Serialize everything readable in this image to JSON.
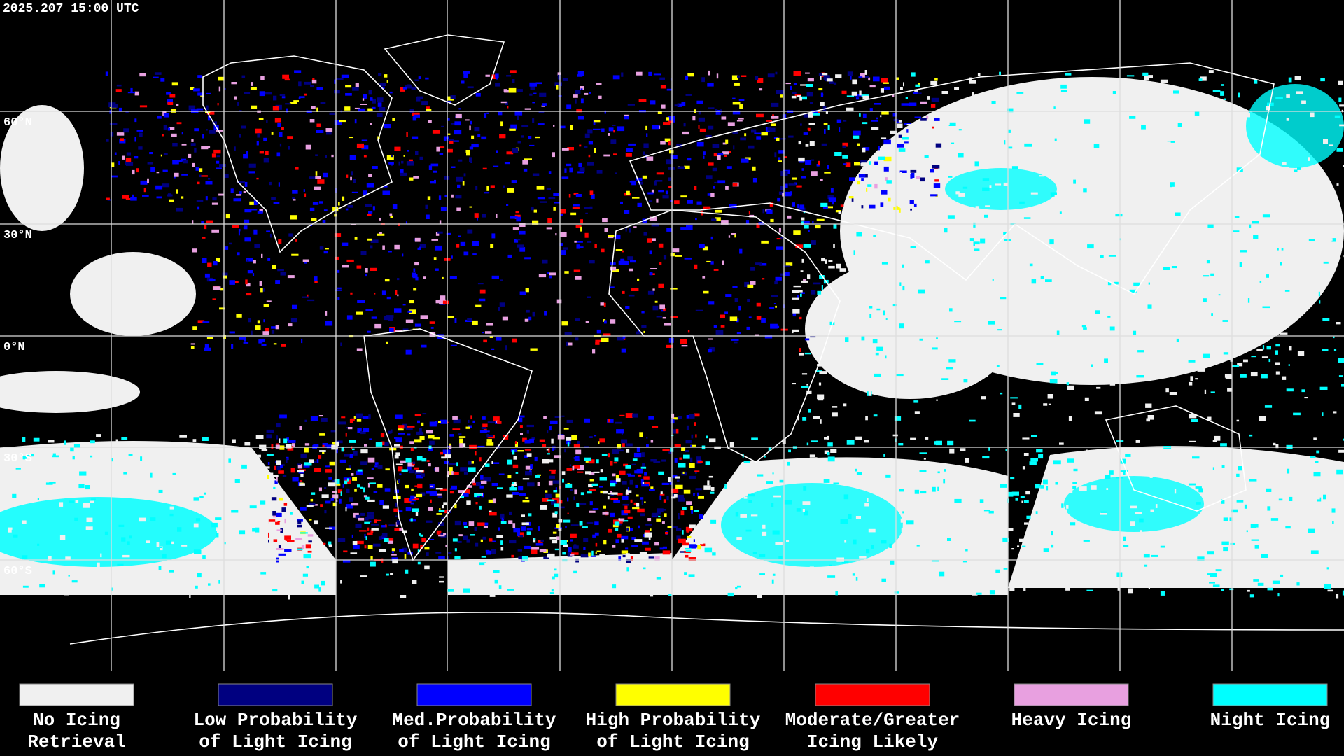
{
  "header": {
    "timestamp": "2025.207 15:00 UTC"
  },
  "map": {
    "latitude_labels": [
      "60°N",
      "30°N",
      "0°N",
      "30°S",
      "60°S"
    ]
  },
  "legend": [
    {
      "label": [
        "No Icing",
        "Retrieval"
      ],
      "color": "#f0f0f0"
    },
    {
      "label": [
        "Low Probability",
        "of Light Icing"
      ],
      "color": "#000080"
    },
    {
      "label": [
        "Med.Probability",
        "of Light Icing"
      ],
      "color": "#0000ff"
    },
    {
      "label": [
        "High Probability",
        "of Light Icing"
      ],
      "color": "#ffff00"
    },
    {
      "label": [
        "Moderate/Greater",
        "Icing Likely"
      ],
      "color": "#ff0000"
    },
    {
      "label": [
        "Heavy Icing",
        ""
      ],
      "color": "#e8a0e0"
    },
    {
      "label": [
        "Night Icing",
        ""
      ],
      "color": "#00ffff"
    }
  ]
}
